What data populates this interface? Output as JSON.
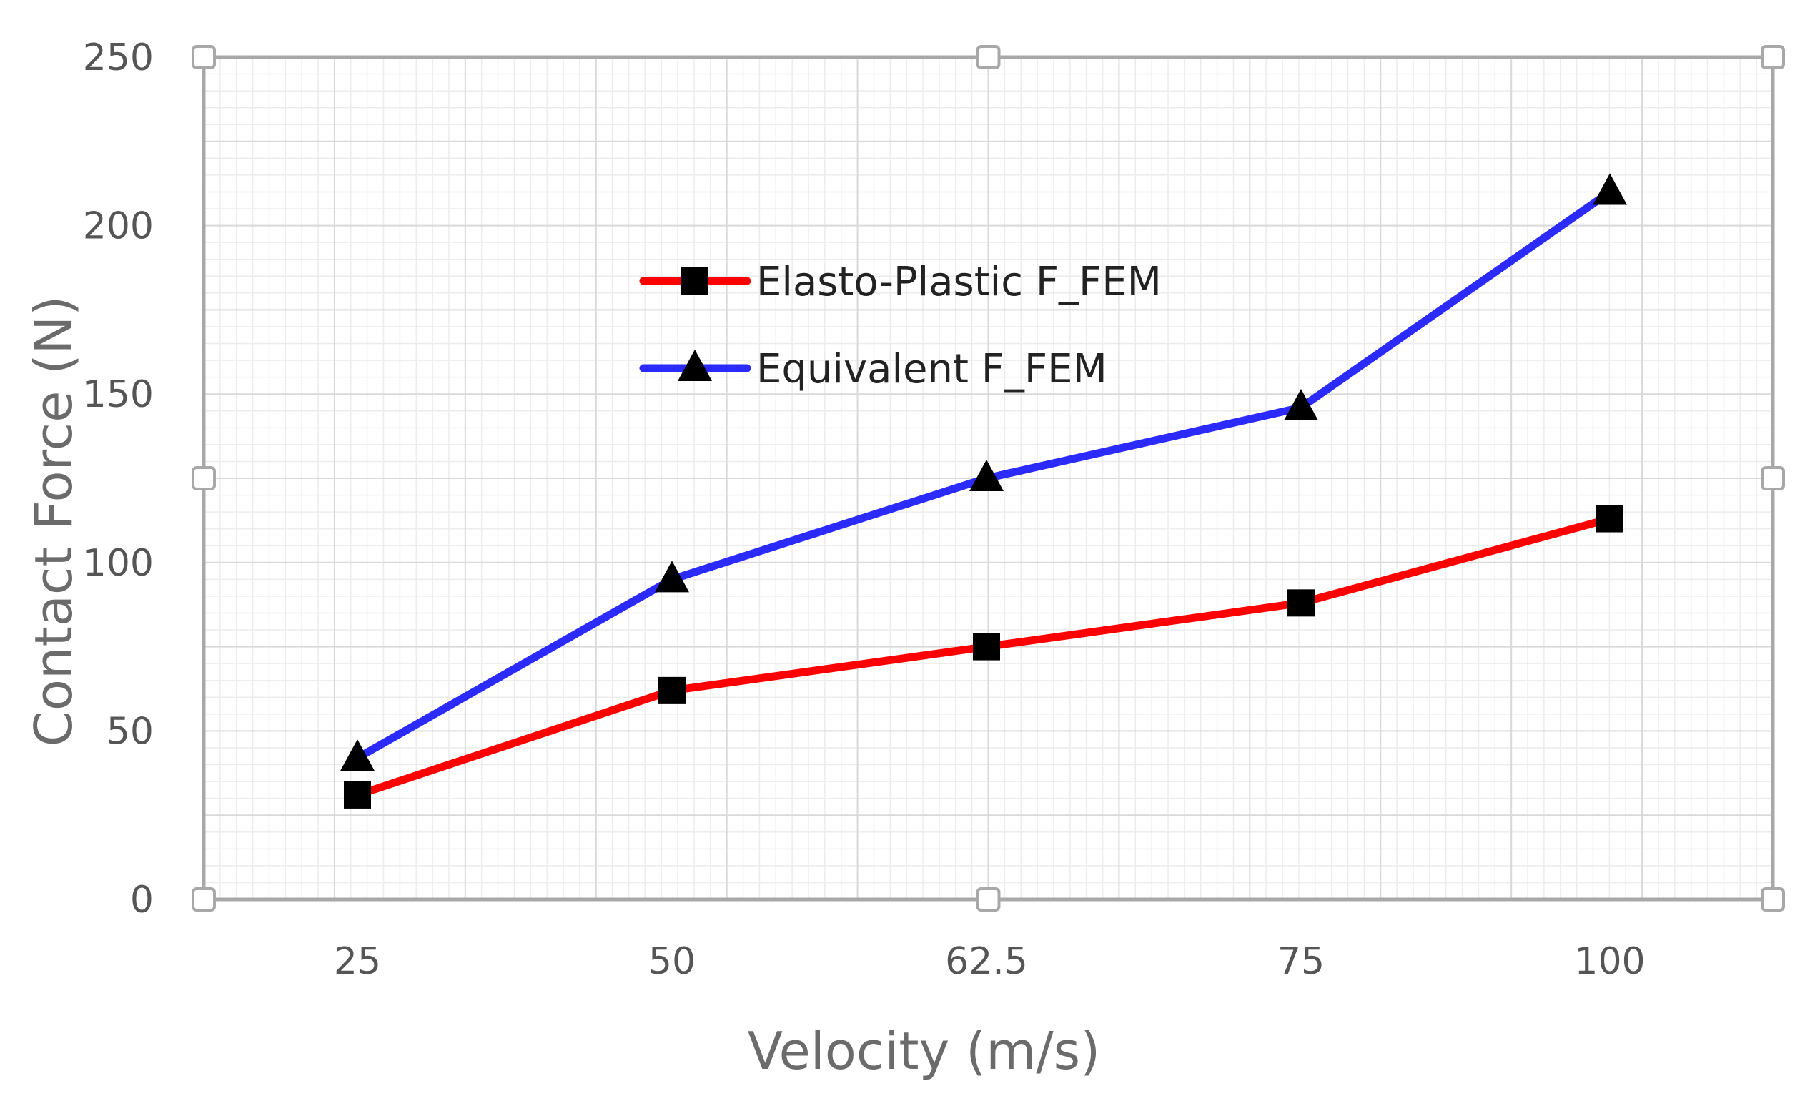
{
  "chart_data": {
    "type": "line",
    "title": "",
    "xlabel": "Velocity (m/s)",
    "ylabel": "Contact Force (N)",
    "categories": [
      "25",
      "50",
      "62.5",
      "75",
      "100"
    ],
    "ylim": [
      0,
      250
    ],
    "yticks": [
      0,
      50,
      100,
      150,
      200,
      250
    ],
    "grid": true,
    "legend_position": "upper-center",
    "series": [
      {
        "name": "Elasto-Plastic F_FEM",
        "color": "#ff0000",
        "marker": "square",
        "values": [
          31,
          62,
          75,
          88,
          113
        ]
      },
      {
        "name": "Equivalent F_FEM",
        "color": "#2b2bff",
        "marker": "triangle",
        "values": [
          42,
          95,
          125,
          146,
          210
        ]
      }
    ]
  }
}
